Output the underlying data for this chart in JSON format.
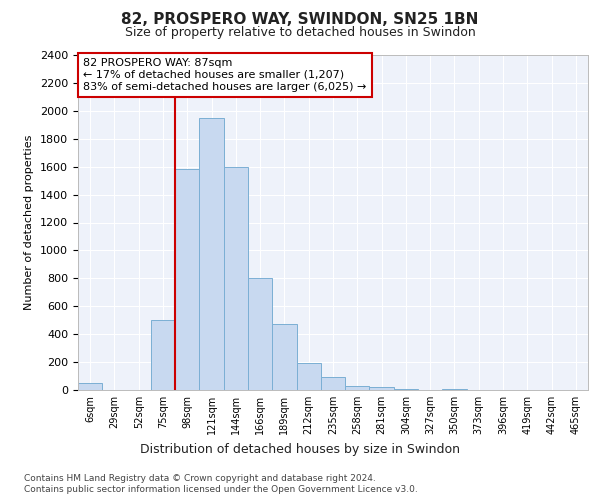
{
  "title1": "82, PROSPERO WAY, SWINDON, SN25 1BN",
  "title2": "Size of property relative to detached houses in Swindon",
  "xlabel": "Distribution of detached houses by size in Swindon",
  "ylabel": "Number of detached properties",
  "footnote1": "Contains HM Land Registry data © Crown copyright and database right 2024.",
  "footnote2": "Contains public sector information licensed under the Open Government Licence v3.0.",
  "annotation_line1": "82 PROSPERO WAY: 87sqm",
  "annotation_line2": "← 17% of detached houses are smaller (1,207)",
  "annotation_line3": "83% of semi-detached houses are larger (6,025) →",
  "bar_color": "#c8d9f0",
  "bar_edge_color": "#7bafd4",
  "vline_color": "#cc0000",
  "annotation_box_edge": "#cc0000",
  "background_color": "#eef2fa",
  "categories": [
    "6sqm",
    "29sqm",
    "52sqm",
    "75sqm",
    "98sqm",
    "121sqm",
    "144sqm",
    "166sqm",
    "189sqm",
    "212sqm",
    "235sqm",
    "258sqm",
    "281sqm",
    "304sqm",
    "327sqm",
    "350sqm",
    "373sqm",
    "396sqm",
    "419sqm",
    "442sqm",
    "465sqm"
  ],
  "values": [
    50,
    0,
    0,
    500,
    1580,
    1950,
    1600,
    800,
    475,
    190,
    90,
    30,
    20,
    10,
    0,
    10,
    0,
    0,
    0,
    0,
    0
  ],
  "vline_x_index": 4,
  "ylim": [
    0,
    2400
  ],
  "yticks": [
    0,
    200,
    400,
    600,
    800,
    1000,
    1200,
    1400,
    1600,
    1800,
    2000,
    2200,
    2400
  ],
  "title1_fontsize": 11,
  "title2_fontsize": 9,
  "ylabel_fontsize": 8,
  "xlabel_fontsize": 9,
  "tick_fontsize": 8,
  "xtick_fontsize": 7,
  "footnote_fontsize": 6.5
}
